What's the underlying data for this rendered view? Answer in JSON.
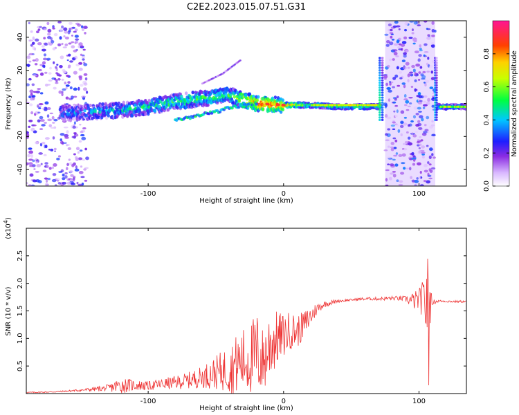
{
  "title": "C2E2.2023.015.07.51.G31",
  "chart_data": [
    {
      "type": "heatmap",
      "xlabel": "Height of straight line (km)",
      "ylabel": "Frequency (Hz)",
      "xlim": [
        -190,
        135
      ],
      "ylim": [
        -50,
        50
      ],
      "x_ticks": [
        -100,
        0,
        100
      ],
      "y_ticks": [
        -40,
        -20,
        0,
        20,
        40
      ],
      "colorbar": {
        "label": "Normalized spectral amplitude",
        "range": [
          0.0,
          1.0
        ],
        "ticks": [
          "0.0",
          "0.2",
          "0.4",
          "0.6",
          "0.8"
        ],
        "tick_values": [
          0.0,
          0.2,
          0.4,
          0.6,
          0.8
        ],
        "colormap": "white-purple-blue-cyan-green-yellow-orange-red-magenta"
      },
      "noise_bands": [
        {
          "x_range": [
            -190,
            -145
          ],
          "level": 0.25
        },
        {
          "x_range": [
            75,
            112
          ],
          "level": 0.3
        }
      ],
      "signal_ridge": [
        {
          "x": -160,
          "freq": -6,
          "amp": 0.3
        },
        {
          "x": -140,
          "freq": -5,
          "amp": 0.35
        },
        {
          "x": -120,
          "freq": -4,
          "amp": 0.4
        },
        {
          "x": -100,
          "freq": -2,
          "amp": 0.45
        },
        {
          "x": -80,
          "freq": 1,
          "amp": 0.5
        },
        {
          "x": -60,
          "freq": 3,
          "amp": 0.5
        },
        {
          "x": -40,
          "freq": 5,
          "amp": 0.5
        },
        {
          "x": -20,
          "freq": 0,
          "amp": 0.85
        },
        {
          "x": 0,
          "freq": -1,
          "amp": 0.8
        },
        {
          "x": 20,
          "freq": -1,
          "amp": 0.55
        },
        {
          "x": 40,
          "freq": -2,
          "amp": 0.5
        },
        {
          "x": 60,
          "freq": -2,
          "amp": 0.5
        },
        {
          "x": 70,
          "freq": -2,
          "amp": 0.5
        },
        {
          "x": 115,
          "freq": -2,
          "amp": 0.45
        },
        {
          "x": 135,
          "freq": -2,
          "amp": 0.4
        }
      ],
      "secondary_branch": [
        {
          "x": -80,
          "freq": -10
        },
        {
          "x": -60,
          "freq": -7
        },
        {
          "x": -40,
          "freq": -3
        },
        {
          "x": -20,
          "freq": 0
        }
      ],
      "upper_streak": [
        {
          "x": -60,
          "freq": 12
        },
        {
          "x": -45,
          "freq": 18
        },
        {
          "x": -32,
          "freq": 26
        }
      ]
    },
    {
      "type": "line",
      "xlabel": "Height of straight line (km)",
      "ylabel": "SNR (10 * v/v)",
      "y_multiplier": "(x10",
      "y_multiplier_exp": "4",
      "y_multiplier_close": ")",
      "xlim": [
        -190,
        135
      ],
      "ylim": [
        0,
        3.0
      ],
      "x_ticks": [
        -100,
        0,
        100
      ],
      "y_ticks": [
        0.5,
        1.0,
        1.5,
        2.0,
        2.5
      ],
      "y_tick_labels": [
        "0.5",
        "1.0",
        "1.5",
        "2.0",
        "2.5"
      ],
      "color": "#ee3333",
      "series": [
        {
          "x": [
            -190,
            -170,
            -150,
            -130,
            -120,
            -110,
            -100,
            -90,
            -80,
            -70,
            -60,
            -50,
            -40,
            -35,
            -30,
            -25,
            -20,
            -15,
            -10,
            -5,
            0,
            5,
            10,
            15,
            20,
            25,
            30,
            40,
            50,
            60,
            70,
            80,
            90,
            95,
            100,
            104,
            106,
            107,
            108,
            110,
            115,
            125,
            135
          ],
          "values": [
            0.02,
            0.03,
            0.06,
            0.1,
            0.15,
            0.15,
            0.14,
            0.17,
            0.2,
            0.24,
            0.3,
            0.38,
            0.45,
            0.52,
            0.6,
            0.62,
            0.72,
            0.58,
            0.9,
            1.0,
            1.05,
            1.15,
            1.12,
            1.25,
            1.4,
            1.55,
            1.62,
            1.68,
            1.7,
            1.72,
            1.72,
            1.73,
            1.72,
            1.68,
            1.7,
            1.72,
            1.6,
            1.1,
            1.4,
            1.66,
            1.68,
            1.67,
            1.67
          ],
          "noise_amplitude": [
            0.01,
            0.01,
            0.02,
            0.06,
            0.15,
            0.1,
            0.08,
            0.1,
            0.12,
            0.15,
            0.2,
            0.3,
            0.45,
            0.55,
            0.6,
            0.65,
            0.8,
            0.6,
            0.7,
            0.5,
            0.4,
            0.35,
            0.3,
            0.25,
            0.2,
            0.1,
            0.06,
            0.03,
            0.02,
            0.03,
            0.03,
            0.04,
            0.05,
            0.15,
            0.2,
            0.4,
            1.0,
            1.4,
            0.6,
            0.05,
            0.02,
            0.02,
            0.02
          ]
        }
      ]
    }
  ]
}
